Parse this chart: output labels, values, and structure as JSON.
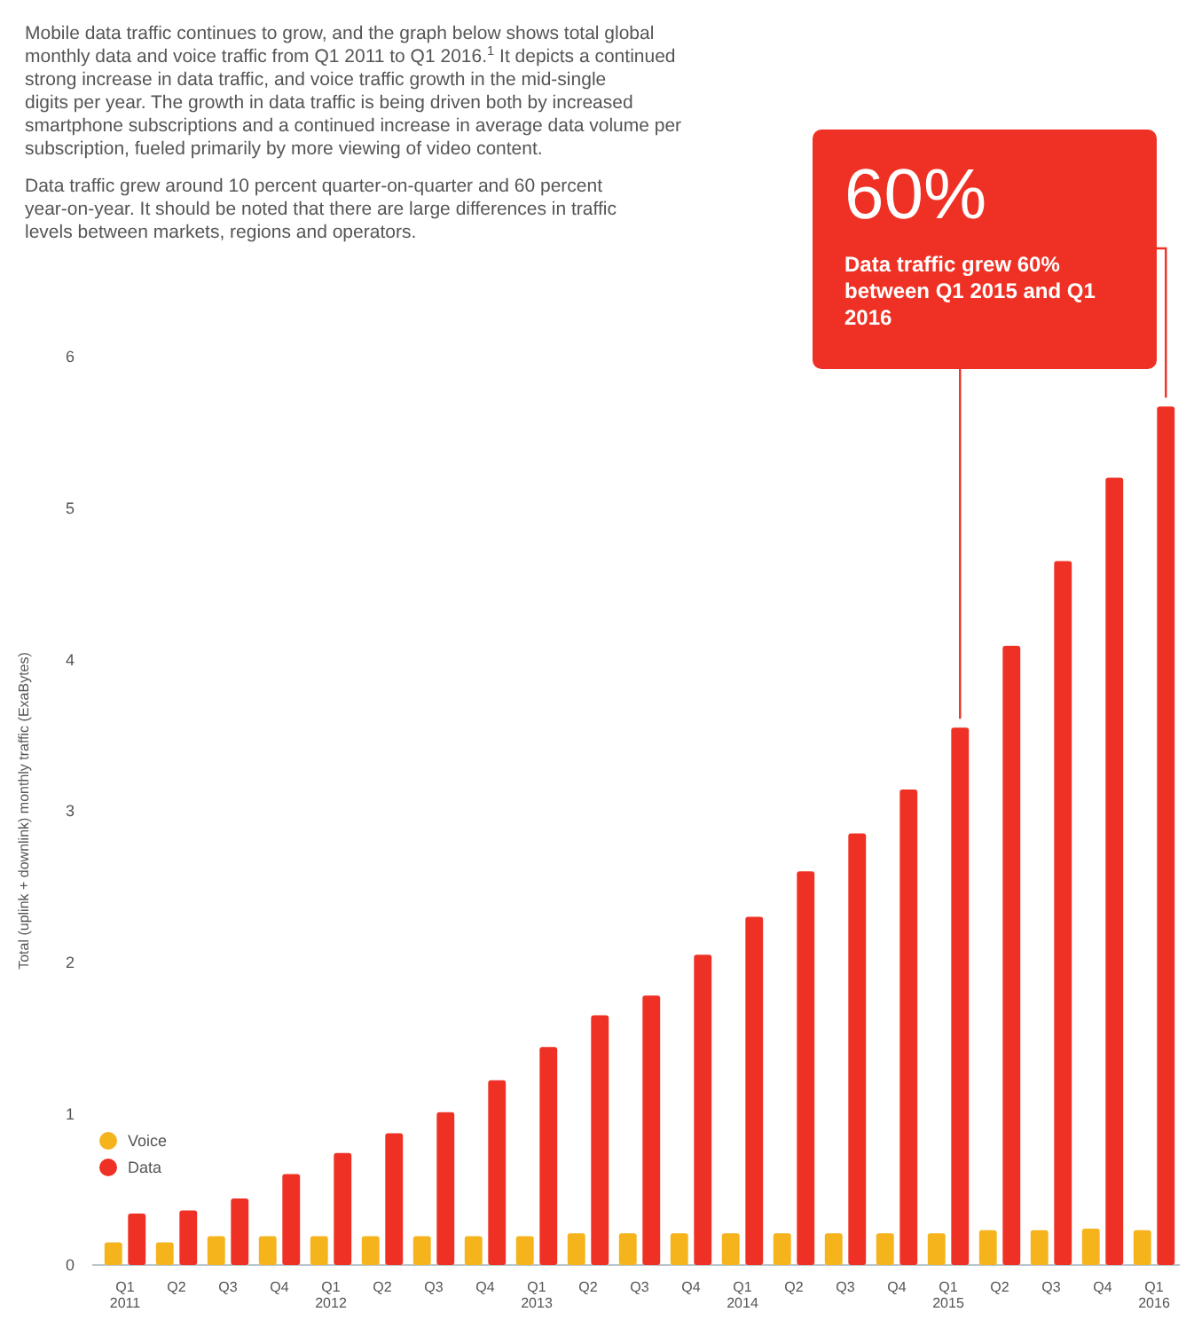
{
  "chart_data": {
    "type": "bar",
    "annotations": [
      "Mobile data traffic continues to grow, and the graph below shows total global monthly data and voice traffic from Q1 2011 to Q1 2016.$^{1}$ It depicts a continued strong increase in data traffic, and voice traffic growth in the mid-single digits per year. The growth in data traffic is being driven both by increased smartphone subscriptions and a continued increase in average data volume per subscription, fueled primarily by more viewing of video content.",
      "Data traffic grew around 10 percent quarter-on-quarter and 60 percent year-on-year. It should be noted that there are large differences in traffic levels between markets, regions and operators.",
      "60%",
      "Data traffic grew 60% between Q1 2015 and Q1 2016"
    ],
    "ylabel": "Total (uplink + downlink) monthly traffic (ExaBytes)",
    "categories": [
      "Q1\n2011",
      "Q2",
      "Q3",
      "Q4",
      "Q1\n2012",
      "Q2",
      "Q3",
      "Q4",
      "Q1\n2013",
      "Q2",
      "Q3",
      "Q4",
      "Q1\n2014",
      "Q2",
      "Q3",
      "Q4",
      "Q1\n2015",
      "Q2",
      "Q3",
      "Q4",
      "Q1\n2016"
    ],
    "series": [
      {
        "name": "Voice",
        "color": "#f5b31c",
        "values": [
          0.15,
          0.15,
          0.19,
          0.19,
          0.19,
          0.19,
          0.19,
          0.19,
          0.19,
          0.21,
          0.21,
          0.21,
          0.21,
          0.21,
          0.21,
          0.21,
          0.21,
          0.23,
          0.23,
          0.24,
          0.23
        ]
      },
      {
        "name": "Data",
        "color": "#ee3124",
        "values": [
          0.34,
          0.36,
          0.44,
          0.6,
          0.74,
          0.87,
          1.01,
          1.22,
          1.44,
          1.65,
          1.78,
          2.05,
          2.3,
          2.6,
          2.85,
          3.14,
          3.55,
          4.09,
          4.65,
          5.2,
          5.67
        ]
      }
    ],
    "ylim": [
      0,
      6
    ],
    "yticks": [
      0,
      1,
      2,
      3,
      4,
      5,
      6
    ],
    "legend": "bottom left"
  }
}
